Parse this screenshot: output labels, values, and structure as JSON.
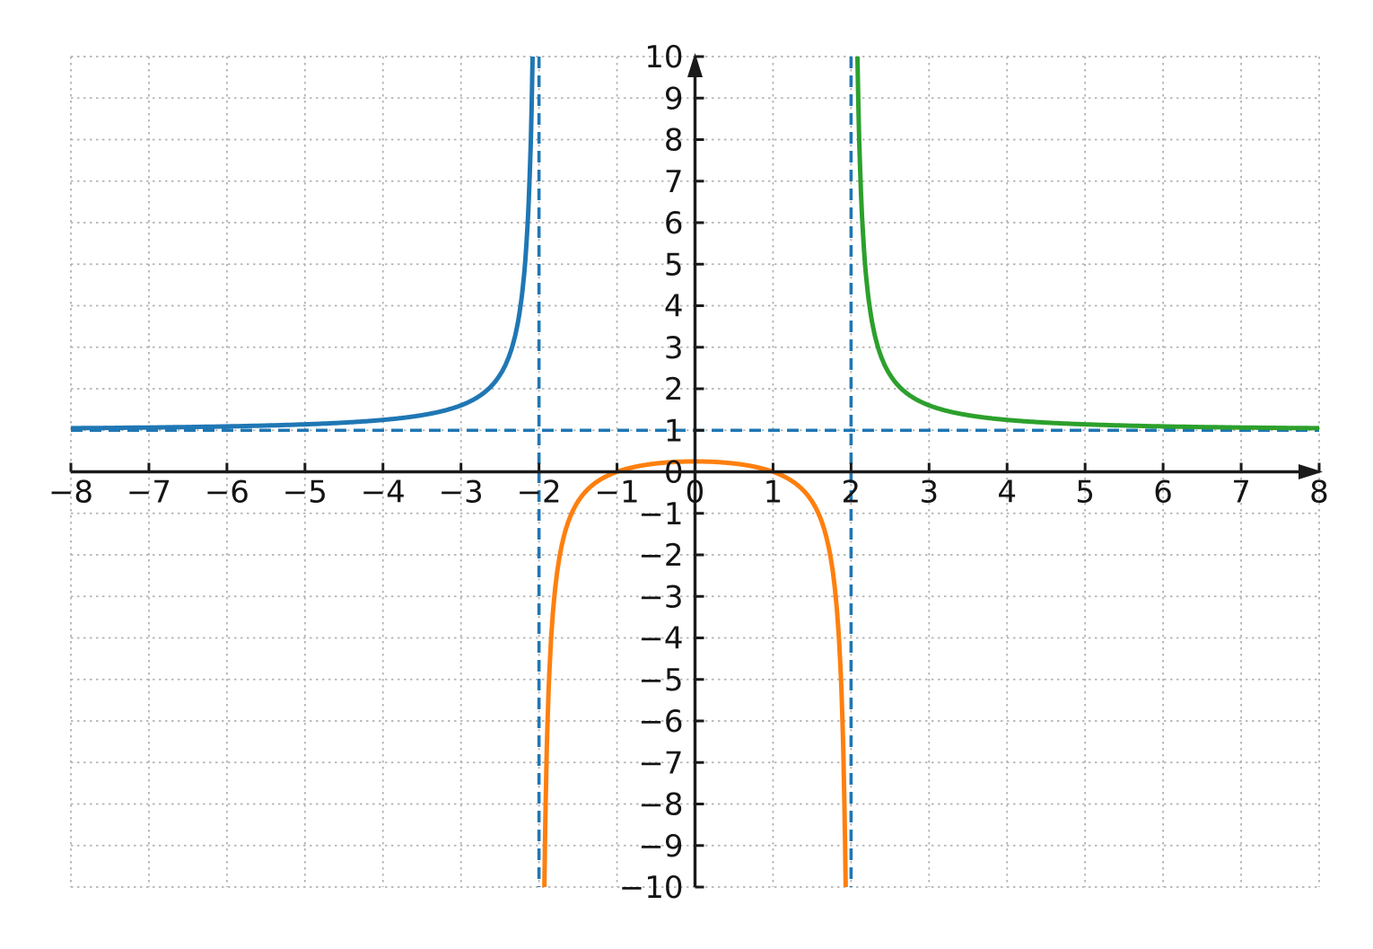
{
  "figure": {
    "background": "#ffffff",
    "title": ""
  },
  "chart_data": {
    "type": "line",
    "title": "",
    "xlabel": "",
    "ylabel": "",
    "grid": true,
    "legend": "none",
    "x_axis": {
      "min": -8,
      "max": 8,
      "tick_step": 1,
      "tick_values": [
        -8,
        -7,
        -6,
        -5,
        -4,
        -3,
        -2,
        -1,
        0,
        1,
        2,
        3,
        4,
        5,
        6,
        7,
        8
      ],
      "tick_labels": [
        "−8",
        "−7",
        "−6",
        "−5",
        "−4",
        "−3",
        "−2",
        "−1",
        "0",
        "1",
        "2",
        "3",
        "4",
        "5",
        "6",
        "7",
        "8"
      ],
      "arrow_end": "right"
    },
    "y_axis": {
      "min": -10,
      "max": 10,
      "tick_step": 1,
      "tick_values": [
        -10,
        -9,
        -8,
        -7,
        -6,
        -5,
        -4,
        -3,
        -2,
        -1,
        0,
        1,
        2,
        3,
        4,
        5,
        6,
        7,
        8,
        9,
        10
      ],
      "tick_labels": [
        "−10",
        "−9",
        "−8",
        "−7",
        "−6",
        "−5",
        "−4",
        "−3",
        "−2",
        "−1",
        "0",
        "1",
        "2",
        "3",
        "4",
        "5",
        "6",
        "7",
        "8",
        "9",
        "10"
      ],
      "arrow_end": "top"
    },
    "function": {
      "description": "y = (x^2 - 1) / (x^2 - 4)",
      "numerator_coeffs": [
        1,
        0,
        -1
      ],
      "denominator_coeffs": [
        1,
        0,
        -4
      ]
    },
    "series": [
      {
        "name": "left-branch",
        "color": "#1f77b4",
        "style": "solid",
        "x_range": [
          -8,
          -2.0817
        ],
        "sample_points": [
          [
            -8,
            1.05
          ],
          [
            -7,
            1.067
          ],
          [
            -6,
            1.094
          ],
          [
            -5,
            1.143
          ],
          [
            -4.5,
            1.185
          ],
          [
            -4,
            1.25
          ],
          [
            -3.5,
            1.364
          ],
          [
            -3,
            1.6
          ],
          [
            -2.8,
            1.781
          ],
          [
            -2.6,
            2.087
          ],
          [
            -2.5,
            2.333
          ],
          [
            -2.4,
            2.705
          ],
          [
            -2.3,
            3.326
          ],
          [
            -2.2,
            4.571
          ],
          [
            -2.15,
            5.819
          ],
          [
            -2.1,
            8.317
          ],
          [
            -2.0817,
            10
          ]
        ]
      },
      {
        "name": "middle-branch",
        "color": "#ff7f0e",
        "style": "solid",
        "x_range": [
          -1.9307,
          1.9307
        ],
        "sample_points": [
          [
            -1.9307,
            -10
          ],
          [
            -1.92,
            -8.566
          ],
          [
            -1.9,
            -6.692
          ],
          [
            -1.88,
            -5.443
          ],
          [
            -1.85,
            -4.195
          ],
          [
            -1.8,
            -2.947
          ],
          [
            -1.7,
            -1.703
          ],
          [
            -1.6,
            -1.083
          ],
          [
            -1.5,
            -0.714
          ],
          [
            -1.3,
            -0.299
          ],
          [
            -1,
            0
          ],
          [
            -0.7,
            0.145
          ],
          [
            -0.5,
            0.2
          ],
          [
            0,
            0.25
          ],
          [
            0.5,
            0.2
          ],
          [
            0.7,
            0.145
          ],
          [
            1,
            0
          ],
          [
            1.3,
            -0.299
          ],
          [
            1.5,
            -0.714
          ],
          [
            1.7,
            -1.703
          ],
          [
            1.8,
            -2.947
          ],
          [
            1.85,
            -4.195
          ],
          [
            1.88,
            -5.443
          ],
          [
            1.9,
            -6.692
          ],
          [
            1.92,
            -8.566
          ],
          [
            1.9307,
            -10
          ]
        ]
      },
      {
        "name": "right-branch",
        "color": "#2ca02c",
        "style": "solid",
        "x_range": [
          2.0817,
          8
        ],
        "sample_points": [
          [
            2.0817,
            10
          ],
          [
            2.1,
            8.317
          ],
          [
            2.15,
            5.819
          ],
          [
            2.2,
            4.571
          ],
          [
            2.3,
            3.326
          ],
          [
            2.4,
            2.705
          ],
          [
            2.5,
            2.333
          ],
          [
            2.6,
            2.087
          ],
          [
            2.8,
            1.781
          ],
          [
            3,
            1.6
          ],
          [
            3.5,
            1.364
          ],
          [
            4,
            1.25
          ],
          [
            4.5,
            1.185
          ],
          [
            5,
            1.143
          ],
          [
            6,
            1.094
          ],
          [
            7,
            1.067
          ],
          [
            8,
            1.05
          ]
        ]
      }
    ],
    "asymptotes": [
      {
        "type": "vertical",
        "x": -2,
        "color": "#1f77b4",
        "style": "dashed"
      },
      {
        "type": "vertical",
        "x": 2,
        "color": "#1f77b4",
        "style": "dashed"
      },
      {
        "type": "horizontal",
        "y": 1,
        "color": "#1f77b4",
        "style": "dashed"
      }
    ],
    "key_points": {
      "y_intercept": [
        0,
        0.25
      ],
      "x_intercepts": [
        [
          -1,
          0
        ],
        [
          1,
          0
        ]
      ]
    },
    "colors": {
      "axis": "#1a1a1a",
      "grid": "#b3b3b3",
      "tick_label": "#141414"
    }
  }
}
